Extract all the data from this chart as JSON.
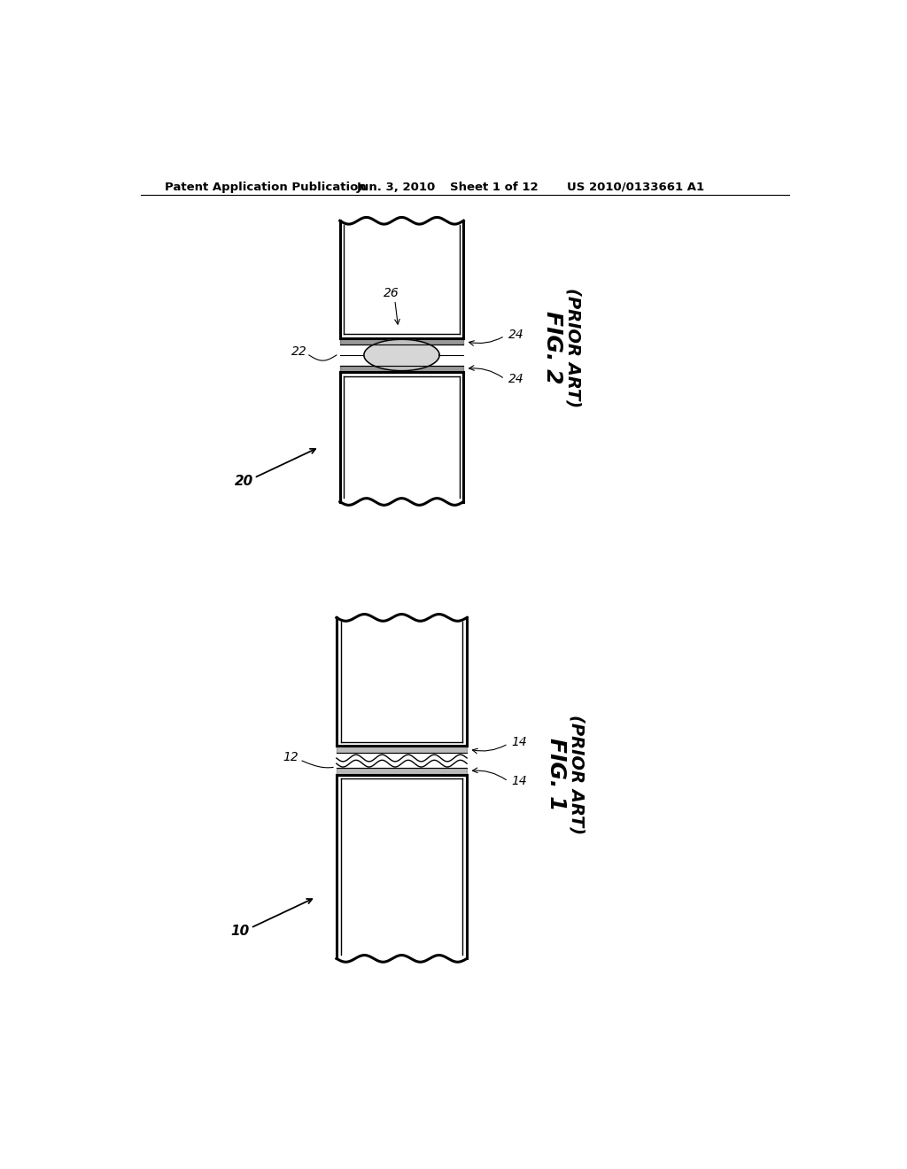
{
  "bg_color": "#ffffff",
  "line_color": "#000000",
  "header_text1": "Patent Application Publication",
  "header_text2": "Jun. 3, 2010",
  "header_text3": "Sheet 1 of 12",
  "header_text4": "US 2010/0133661 A1"
}
